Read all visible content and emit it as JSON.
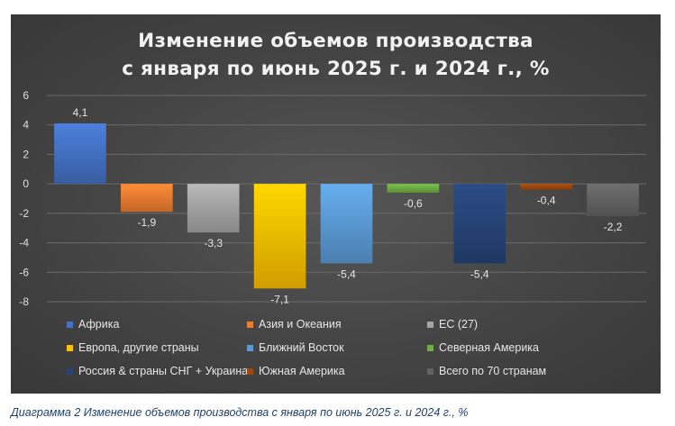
{
  "chart_data": {
    "type": "bar",
    "title_lines": [
      "Изменение объемов производства",
      "с января по июнь 2025 г. и 2024 г., %"
    ],
    "categories": [
      "Африка",
      "Азия и Океания",
      "ЕС (27)",
      "Европа, другие страны",
      "Ближний Восток",
      "Северная Америка",
      "Россия & страны СНГ + Украина",
      "Южная Америка",
      "Всего по 70 странам"
    ],
    "values": [
      4.1,
      -1.9,
      -3.3,
      -7.1,
      -5.4,
      -0.6,
      -5.4,
      -0.4,
      -2.2
    ],
    "data_labels": [
      "4,1",
      "-1,9",
      "-3,3",
      "-7,1",
      "-5,4",
      "-0,6",
      "-5,4",
      "-0,4",
      "-2,2"
    ],
    "colors": [
      "#4472c4",
      "#ed7d31",
      "#a5a5a5",
      "#ffc000",
      "#5b9bd5",
      "#70ad47",
      "#264478",
      "#9e480e",
      "#636363"
    ],
    "ylim": [
      -8,
      6
    ],
    "yticks": [
      6,
      4,
      2,
      0,
      -2,
      -4,
      -6,
      -8
    ],
    "grid": true,
    "legend_position": "bottom",
    "xlabel": "",
    "ylabel": ""
  },
  "caption": "Диаграмма 2 Изменение объемов производства с января по июнь 2025 г. и 2024 г., %"
}
